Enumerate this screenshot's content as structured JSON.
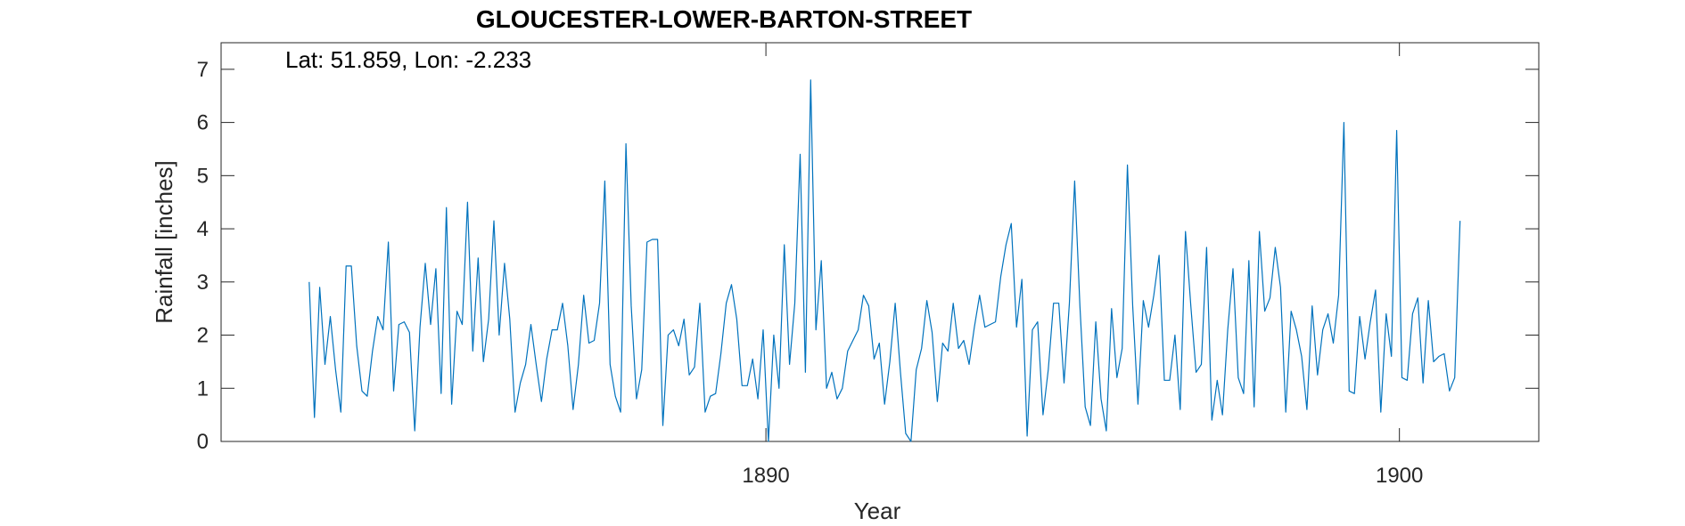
{
  "chart_data": {
    "type": "line",
    "title": "GLOUCESTER-LOWER-BARTON-STREET",
    "annotation": "Lat: 51.859, Lon: -2.233",
    "xlabel": "Year",
    "ylabel": "Rainfall [inches]",
    "xlim": [
      1881.4,
      1902.2
    ],
    "ylim": [
      0,
      7.5
    ],
    "x_ticks": [
      1890,
      1900
    ],
    "y_ticks": [
      0,
      1,
      2,
      3,
      4,
      5,
      6,
      7
    ],
    "grid": false,
    "line_color": "#0072BD",
    "x_start": 1882.79,
    "x_step": 0.0833333,
    "series": [
      {
        "values": [
          3.0,
          0.45,
          2.9,
          1.45,
          2.35,
          1.35,
          0.55,
          3.3,
          3.3,
          1.8,
          0.95,
          0.85,
          1.7,
          2.35,
          2.1,
          3.75,
          0.95,
          2.2,
          2.25,
          2.05,
          0.2,
          2.15,
          3.35,
          2.2,
          3.25,
          0.9,
          4.4,
          0.7,
          2.45,
          2.2,
          4.5,
          1.7,
          3.45,
          1.5,
          2.3,
          4.15,
          2.0,
          3.35,
          2.3,
          0.55,
          1.1,
          1.45,
          2.2,
          1.45,
          0.75,
          1.55,
          2.1,
          2.1,
          2.6,
          1.8,
          0.6,
          1.45,
          2.75,
          1.85,
          1.9,
          2.6,
          4.9,
          1.45,
          0.85,
          0.55,
          5.6,
          2.55,
          0.8,
          1.35,
          3.75,
          3.8,
          3.8,
          0.3,
          2.0,
          2.1,
          1.8,
          2.3,
          1.25,
          1.4,
          2.6,
          0.55,
          0.85,
          0.9,
          1.65,
          2.6,
          2.95,
          2.3,
          1.05,
          1.05,
          1.55,
          0.8,
          2.1,
          0.0,
          2.0,
          1.0,
          3.7,
          1.45,
          2.6,
          5.4,
          1.3,
          6.8,
          2.1,
          3.4,
          1.0,
          1.3,
          0.8,
          1.0,
          1.7,
          1.9,
          2.1,
          2.75,
          2.55,
          1.55,
          1.85,
          0.7,
          1.5,
          2.6,
          1.3,
          0.15,
          0.0,
          1.35,
          1.75,
          2.65,
          2.05,
          0.75,
          1.85,
          1.7,
          2.6,
          1.75,
          1.9,
          1.45,
          2.15,
          2.75,
          2.15,
          2.2,
          2.25,
          3.1,
          3.7,
          4.1,
          2.15,
          3.05,
          0.1,
          2.1,
          2.25,
          0.5,
          1.35,
          2.6,
          2.6,
          1.1,
          2.6,
          4.9,
          2.55,
          0.65,
          0.3,
          2.25,
          0.8,
          0.2,
          2.5,
          1.2,
          1.75,
          5.2,
          2.55,
          0.7,
          2.65,
          2.15,
          2.75,
          3.5,
          1.15,
          1.15,
          2.0,
          0.6,
          3.95,
          2.55,
          1.3,
          1.45,
          3.65,
          0.4,
          1.15,
          0.5,
          2.1,
          3.25,
          1.2,
          0.9,
          3.4,
          0.65,
          3.95,
          2.45,
          2.7,
          3.65,
          2.9,
          0.55,
          2.45,
          2.1,
          1.6,
          0.6,
          2.55,
          1.25,
          2.1,
          2.4,
          1.85,
          2.75,
          6.0,
          0.95,
          0.9,
          2.35,
          1.55,
          2.25,
          2.85,
          0.55,
          2.4,
          1.6,
          5.85,
          1.2,
          1.15,
          2.4,
          2.7,
          1.1,
          2.65,
          1.5,
          1.6,
          1.65,
          0.95,
          1.2,
          4.15
        ]
      }
    ]
  }
}
